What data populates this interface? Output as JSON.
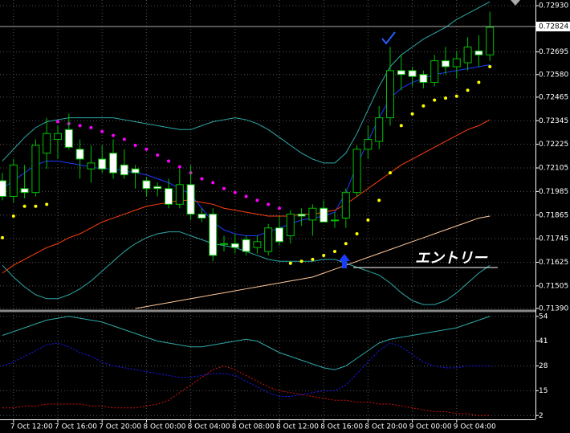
{
  "chart_data": [
    {
      "type": "candlestick",
      "categories": [
        null,
        "7 Oct 12:00",
        null,
        null,
        null,
        "7 Oct 16:00",
        null,
        null,
        null,
        "7 Oct 20:00",
        null,
        null,
        null,
        "8 Oct 00:00",
        null,
        null,
        null,
        "8 Oct 04:00",
        null,
        null,
        null,
        "8 Oct 08:00",
        null,
        null,
        null,
        "8 Oct 12:00",
        null,
        null,
        null,
        "8 Oct 16:00",
        null,
        null,
        null,
        "8 Oct 20:00",
        null,
        null,
        null,
        "9 Oct 00:00",
        null,
        null,
        null,
        "9 Oct 04:00",
        null,
        null,
        null
      ],
      "open": [
        0.7204,
        0.7196,
        0.72,
        0.7198,
        0.7218,
        0.7225,
        0.723,
        0.722,
        0.721,
        0.7215,
        0.7218,
        0.7212,
        0.721,
        0.7204,
        0.7201,
        0.72,
        0.7192,
        0.7202,
        0.7187,
        0.7187,
        0.7172,
        0.7172,
        0.7174,
        0.717,
        0.7168,
        0.718,
        0.7176,
        0.7187,
        0.7184,
        0.719,
        0.7184,
        0.7185,
        0.7198,
        0.722,
        0.7224,
        0.7236,
        0.726,
        0.726,
        0.7258,
        0.7254,
        0.7265,
        0.7262,
        0.7264,
        0.727,
        0.7268
      ],
      "high": [
        0.7208,
        0.7215,
        0.7212,
        0.7225,
        0.7236,
        0.7232,
        0.7238,
        0.7225,
        0.7222,
        0.7222,
        0.7225,
        0.722,
        0.7212,
        0.7206,
        0.7203,
        0.7205,
        0.721,
        0.7212,
        0.719,
        0.719,
        0.7176,
        0.7177,
        0.7176,
        0.7176,
        0.7182,
        0.7186,
        0.7189,
        0.719,
        0.7192,
        0.7194,
        0.7188,
        0.72,
        0.7222,
        0.7232,
        0.7242,
        0.7272,
        0.7268,
        0.7262,
        0.726,
        0.7268,
        0.7272,
        0.727,
        0.7277,
        0.7278,
        0.729
      ],
      "low": [
        0.7194,
        0.7193,
        0.7195,
        0.7196,
        0.721,
        0.7215,
        0.722,
        0.7205,
        0.7203,
        0.7208,
        0.7205,
        0.7205,
        0.72,
        0.7196,
        0.7196,
        0.719,
        0.719,
        0.7184,
        0.7183,
        0.7163,
        0.7168,
        0.7167,
        0.7166,
        0.7167,
        0.7166,
        0.7171,
        0.7172,
        0.7181,
        0.7176,
        0.7183,
        0.718,
        0.718,
        0.7196,
        0.7215,
        0.722,
        0.7232,
        0.725,
        0.7252,
        0.7251,
        0.7252,
        0.7258,
        0.7256,
        0.726,
        0.7262,
        0.7265
      ],
      "close": [
        0.7196,
        0.7212,
        0.7198,
        0.7222,
        0.7228,
        0.7228,
        0.7221,
        0.7215,
        0.7213,
        0.721,
        0.7208,
        0.7207,
        0.7208,
        0.72,
        0.72,
        0.7192,
        0.7202,
        0.7187,
        0.7185,
        0.7166,
        0.7172,
        0.717,
        0.7168,
        0.7173,
        0.718,
        0.7173,
        0.7187,
        0.7186,
        0.719,
        0.7183,
        0.7184,
        0.7198,
        0.722,
        0.7225,
        0.7236,
        0.726,
        0.7258,
        0.7257,
        0.7254,
        0.7265,
        0.7262,
        0.7266,
        0.7272,
        0.7268,
        0.7282
      ],
      "up_color": "#00c000",
      "down_color": "#ffffff",
      "series": [
        {
          "style": "line",
          "color": "#2fa8a8",
          "values": [
            0.7214,
            0.722,
            0.7226,
            0.7231,
            0.7234,
            0.7235,
            0.7236,
            0.7236,
            0.7236,
            0.7236,
            0.7236,
            0.7235,
            0.7234,
            0.7233,
            0.7232,
            0.7231,
            0.723,
            0.723,
            0.7232,
            0.7234,
            0.7235,
            0.7236,
            0.7235,
            0.7233,
            0.723,
            0.7226,
            0.7222,
            0.7218,
            0.7215,
            0.7213,
            0.7213,
            0.7218,
            0.7228,
            0.724,
            0.7252,
            0.7262,
            0.7268,
            0.7272,
            0.7276,
            0.7279,
            0.7282,
            0.7286,
            0.7289,
            0.7292,
            0.7295
          ]
        },
        {
          "style": "line",
          "color": "#2fa8a8",
          "values": [
            0.7161,
            0.7155,
            0.715,
            0.7146,
            0.7144,
            0.7144,
            0.7146,
            0.7149,
            0.7153,
            0.7158,
            0.7163,
            0.7168,
            0.7172,
            0.7175,
            0.7177,
            0.7178,
            0.7178,
            0.7176,
            0.7174,
            0.7172,
            0.7171,
            0.717,
            0.7168,
            0.7166,
            0.7164,
            0.7163,
            0.7163,
            0.7163,
            0.7163,
            0.7164,
            0.7164,
            0.7162,
            0.716,
            0.7158,
            0.7156,
            0.7152,
            0.7147,
            0.7143,
            0.7141,
            0.7141,
            0.7143,
            0.7147,
            0.7152,
            0.7157,
            0.7161
          ]
        },
        {
          "style": "line",
          "color": "#1a3cff",
          "values": [
            0.72,
            0.7204,
            0.7208,
            0.7212,
            0.7214,
            0.7214,
            0.7213,
            0.7212,
            0.7211,
            0.721,
            0.721,
            0.7209,
            0.7208,
            0.7207,
            0.7205,
            0.7203,
            0.72,
            0.7197,
            0.719,
            0.7183,
            0.7179,
            0.7177,
            0.7176,
            0.7176,
            0.7178,
            0.718,
            0.7182,
            0.7184,
            0.7185,
            0.7186,
            0.7188,
            0.7198,
            0.7212,
            0.7224,
            0.7236,
            0.7246,
            0.7251,
            0.7254,
            0.7256,
            0.7258,
            0.7259,
            0.726,
            0.7261,
            0.7262,
            0.7263
          ]
        },
        {
          "style": "line",
          "color": "#ff4010",
          "values": [
            0.7157,
            0.7161,
            0.7164,
            0.7167,
            0.717,
            0.7172,
            0.7175,
            0.7177,
            0.718,
            0.7183,
            0.7185,
            0.7187,
            0.7189,
            0.7191,
            0.7192,
            0.7193,
            0.7194,
            0.7194,
            0.7193,
            0.7192,
            0.719,
            0.7189,
            0.7188,
            0.7187,
            0.7186,
            0.7186,
            0.7186,
            0.7187,
            0.7187,
            0.7188,
            0.7189,
            0.7192,
            0.7196,
            0.72,
            0.7204,
            0.7208,
            0.7212,
            0.7215,
            0.7218,
            0.7221,
            0.7224,
            0.7227,
            0.723,
            0.7232,
            0.7235
          ]
        },
        {
          "style": "line",
          "color": "#ffc89a",
          "values": [
            null,
            null,
            null,
            null,
            null,
            null,
            null,
            null,
            null,
            null,
            null,
            null,
            0.7139,
            0.714,
            0.7141,
            0.7142,
            0.7143,
            0.7144,
            0.7145,
            0.7146,
            0.7147,
            0.7148,
            0.7149,
            0.715,
            0.7151,
            0.7152,
            0.7153,
            0.7154,
            0.7155,
            0.7157,
            0.7159,
            0.7161,
            0.7163,
            0.7165,
            0.7167,
            0.7169,
            0.7171,
            0.7173,
            0.7175,
            0.7177,
            0.7179,
            0.7181,
            0.7183,
            0.7185,
            0.7186
          ]
        },
        {
          "style": "dots",
          "color": "#ff00ff",
          "values": [
            null,
            null,
            null,
            null,
            null,
            0.7234,
            0.7233,
            0.7232,
            0.7231,
            0.7229,
            0.7227,
            0.7225,
            0.7222,
            0.722,
            0.7217,
            0.7214,
            0.7211,
            0.7208,
            0.7205,
            0.7203,
            0.72,
            0.7198,
            0.7196,
            0.7194,
            0.7192,
            0.719,
            null,
            null,
            null,
            null,
            null,
            null,
            null,
            null,
            null,
            null,
            null,
            null,
            null,
            null,
            null,
            null,
            null,
            null,
            null
          ]
        },
        {
          "style": "dots",
          "color": "#ffff00",
          "values": [
            0.7175,
            0.7186,
            0.7191,
            0.7191,
            0.7192,
            null,
            null,
            null,
            null,
            null,
            null,
            null,
            null,
            null,
            null,
            null,
            null,
            null,
            null,
            null,
            null,
            null,
            null,
            null,
            null,
            null,
            0.7162,
            0.7163,
            0.7164,
            0.7166,
            0.7168,
            0.7172,
            0.7177,
            0.7184,
            0.7194,
            0.7208,
            0.7232,
            0.7238,
            0.7242,
            0.7245,
            0.7246,
            0.7247,
            0.725,
            0.7254,
            0.7262
          ]
        }
      ],
      "current_price": 0.72824,
      "annotation": "エントリー",
      "ylim": [
        0.71382,
        0.72959
      ],
      "yticks": [
        {
          "value": 0.7293,
          "label": "0.72930"
        },
        0.72695,
        {
          "value": 0.7258,
          "label": "0.72580"
        },
        0.72465,
        0.72345,
        0.72225,
        0.72105,
        0.71985,
        0.71865,
        0.71745,
        0.71625,
        0.71505,
        {
          "value": 0.7139,
          "label": "0.71390"
        }
      ],
      "grid": true
    },
    {
      "type": "line",
      "series": [
        {
          "style": "line",
          "color": "#2fa8a8",
          "values": [
            44,
            46,
            48,
            50,
            52,
            53,
            54,
            53,
            52,
            51,
            49,
            47,
            45,
            43,
            41,
            40,
            39,
            38,
            38,
            39,
            40,
            41,
            42,
            41,
            38,
            35,
            33,
            31,
            29,
            27,
            26,
            28,
            32,
            36,
            40,
            42,
            43,
            44,
            45,
            46,
            47,
            48,
            50,
            52,
            54
          ]
        },
        {
          "style": "dotted",
          "color": "#1a1aff",
          "values": [
            28,
            30,
            33,
            36,
            39,
            40,
            38,
            35,
            33,
            30,
            28,
            27,
            26,
            25,
            24,
            23,
            22,
            22,
            23,
            24,
            24,
            23,
            20,
            17,
            14,
            12,
            12,
            13,
            14,
            15,
            15,
            18,
            24,
            30,
            36,
            40,
            38,
            34,
            30,
            28,
            27,
            27,
            28,
            28,
            28
          ]
        },
        {
          "style": "dotted",
          "color": "#d01010",
          "values": [
            6,
            6,
            7,
            7,
            8,
            8,
            8,
            8,
            7,
            7,
            6,
            6,
            6,
            7,
            8,
            10,
            14,
            18,
            22,
            26,
            28,
            26,
            23,
            20,
            17,
            15,
            14,
            13,
            12,
            11,
            10,
            10,
            9,
            9,
            8,
            8,
            7,
            6,
            5,
            4,
            4,
            3,
            3,
            2,
            2
          ]
        }
      ],
      "ylim": [
        0,
        56
      ],
      "yticks": [
        54,
        41,
        28,
        15,
        2
      ],
      "grid": true
    }
  ]
}
